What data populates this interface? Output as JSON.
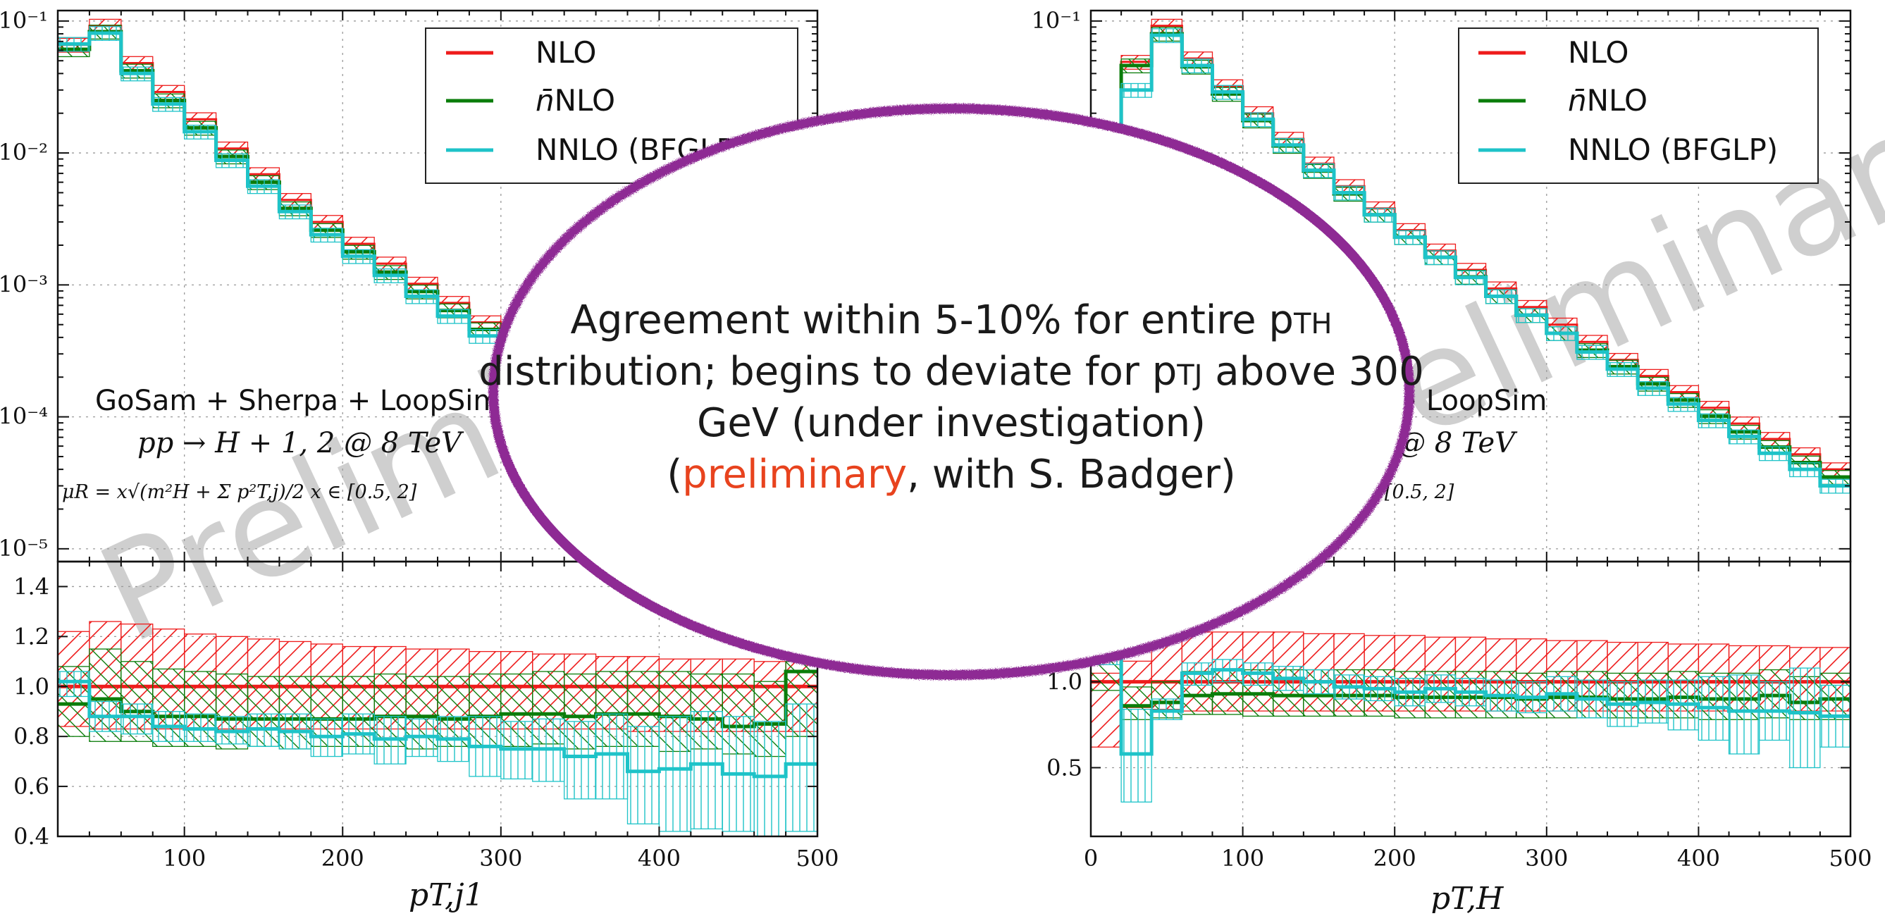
{
  "colors": {
    "nlo": "#ee1c1c",
    "nnlo_bar": "#0a7d0a",
    "nnlo_bfglp": "#1ec3c8",
    "callout_border": "#8e2a94",
    "highlight": "#e8431e",
    "watermark": "#c8c8c8"
  },
  "legend": {
    "nlo": "NLO",
    "nbar_symbol": "n̄",
    "nbar_suffix": "NLO",
    "nnlo": "NNLO (BFGLP)"
  },
  "watermark": "Preliminary",
  "callout": {
    "line1_a": "Agreement within 5-10% for entire p",
    "line1_sub": "TH",
    "line2_a": "distribution; begins to deviate for p",
    "line2_sub": "TJ",
    "line2_b": " above 300",
    "line3": "GeV (under investigation)",
    "line4_a": "(",
    "line4_highlight": "preliminary",
    "line4_b": ", with S. Badger)"
  },
  "left": {
    "info_line1": "GoSam + Sherpa + LoopSim",
    "info_line2": "pp → H + 1, 2 @ 8 TeV",
    "info_line3": "μR = x√(m²H + Σ p²T,j)/2   x ∈ [0.5, 2]",
    "xlabel": "pT,j1"
  },
  "right": {
    "info_line1": "GoSam + Sherpa + LoopSim",
    "info_line2": "pp → H + 1, 2 @ 8 TeV",
    "info_line3": "μR = x√(m²H + Σ p²T,j)/2   x ∈ [0.5, 2]",
    "xlabel": "pT,H"
  },
  "chart_data": [
    {
      "type": "histogram",
      "panel": "left-main",
      "yscale": "log",
      "ylim": [
        8e-06,
        0.12
      ],
      "xlim": [
        20,
        500
      ],
      "ytick_labels": [
        "10⁻¹",
        "10⁻²",
        "10⁻³",
        "10⁻⁴",
        "10⁻⁵"
      ],
      "bin_edges": [
        20,
        40,
        60,
        80,
        100,
        120,
        140,
        160,
        180,
        200,
        220,
        240,
        260,
        280,
        300,
        320,
        340,
        360,
        380,
        400,
        420,
        440,
        460,
        480,
        500
      ],
      "series": [
        {
          "name": "NLO",
          "values": [
            0.066,
            0.092,
            0.048,
            0.029,
            0.018,
            0.0108,
            0.0069,
            0.0044,
            0.003,
            0.00205,
            0.00145,
            0.00102,
            0.00073,
            0.00052,
            0.00038,
            0.00028,
            0.000205,
            0.000152,
            0.000113,
            8.5e-05,
            6.4e-05,
            4.8e-05,
            3.6e-05,
            2.7e-05
          ]
        },
        {
          "name": "n̄NLO",
          "values": [
            0.061,
            0.083,
            0.042,
            0.025,
            0.0155,
            0.0094,
            0.006,
            0.0038,
            0.0026,
            0.00178,
            0.00125,
            0.00089,
            0.00064,
            0.00046,
            0.00033,
            0.000245,
            0.00018,
            0.000132,
            9.8e-05,
            7.4e-05,
            5.6e-05,
            4.2e-05,
            3.1e-05,
            3.5e-05
          ]
        },
        {
          "name": "NNLO (BFGLP)",
          "values": [
            0.067,
            0.081,
            0.04,
            0.0235,
            0.0145,
            0.0088,
            0.0056,
            0.0036,
            0.0024,
            0.00165,
            0.00118,
            0.00082,
            0.00058,
            0.00041,
            0.0003,
            0.00021,
            0.000155,
            0.000112,
            8e-05,
            5.8e-05,
            4.3e-05,
            3.3e-05,
            2.4e-05,
            1.9e-05
          ]
        }
      ]
    },
    {
      "type": "histogram",
      "panel": "left-ratio",
      "ylim": [
        0.4,
        1.5
      ],
      "xlim": [
        20,
        500
      ],
      "xticks": [
        100,
        200,
        300,
        400,
        500
      ],
      "yticks": [
        0.4,
        0.6,
        0.8,
        1.0,
        1.2,
        1.4
      ],
      "bin_edges": [
        20,
        40,
        60,
        80,
        100,
        120,
        140,
        160,
        180,
        200,
        220,
        240,
        260,
        280,
        300,
        320,
        340,
        360,
        380,
        400,
        420,
        440,
        460,
        480,
        500
      ],
      "series": [
        {
          "name": "NLO",
          "values": [
            1.0,
            1.0,
            1.0,
            1.0,
            1.0,
            1.0,
            1.0,
            1.0,
            1.0,
            1.0,
            1.0,
            1.0,
            1.0,
            1.0,
            1.0,
            1.0,
            1.0,
            1.0,
            1.0,
            1.0,
            1.0,
            1.0,
            1.0,
            1.0
          ],
          "band_lo": [
            0.84,
            0.83,
            0.83,
            0.83,
            0.83,
            0.83,
            0.83,
            0.83,
            0.83,
            0.83,
            0.83,
            0.83,
            0.83,
            0.83,
            0.83,
            0.83,
            0.83,
            0.83,
            0.82,
            0.82,
            0.82,
            0.82,
            0.82,
            0.82
          ],
          "band_hi": [
            1.22,
            1.26,
            1.25,
            1.23,
            1.21,
            1.2,
            1.19,
            1.18,
            1.17,
            1.16,
            1.16,
            1.15,
            1.15,
            1.14,
            1.14,
            1.13,
            1.13,
            1.12,
            1.12,
            1.11,
            1.11,
            1.11,
            1.1,
            1.1
          ]
        },
        {
          "name": "n̄NLO",
          "values": [
            0.93,
            0.95,
            0.9,
            0.88,
            0.88,
            0.87,
            0.87,
            0.87,
            0.87,
            0.87,
            0.88,
            0.88,
            0.87,
            0.88,
            0.89,
            0.89,
            0.88,
            0.89,
            0.89,
            0.88,
            0.87,
            0.84,
            0.85,
            1.06
          ],
          "band_lo": [
            0.8,
            0.78,
            0.78,
            0.76,
            0.76,
            0.75,
            0.76,
            0.75,
            0.76,
            0.76,
            0.76,
            0.75,
            0.76,
            0.76,
            0.76,
            0.77,
            0.75,
            0.76,
            0.76,
            0.74,
            0.75,
            0.73,
            0.72,
            0.8
          ],
          "band_hi": [
            1.08,
            1.15,
            1.1,
            1.07,
            1.06,
            1.05,
            1.04,
            1.04,
            1.04,
            1.04,
            1.05,
            1.04,
            1.04,
            1.05,
            1.05,
            1.06,
            1.05,
            1.06,
            1.06,
            1.06,
            1.05,
            1.05,
            1.02,
            1.1
          ]
        },
        {
          "name": "NNLO (BFGLP)",
          "values": [
            1.02,
            0.88,
            0.88,
            0.84,
            0.83,
            0.82,
            0.83,
            0.82,
            0.8,
            0.81,
            0.79,
            0.8,
            0.79,
            0.76,
            0.75,
            0.75,
            0.72,
            0.73,
            0.66,
            0.67,
            0.69,
            0.65,
            0.64,
            0.69
          ],
          "band_lo": [
            0.96,
            0.82,
            0.81,
            0.78,
            0.78,
            0.77,
            0.76,
            0.75,
            0.72,
            0.73,
            0.69,
            0.72,
            0.7,
            0.64,
            0.63,
            0.62,
            0.55,
            0.55,
            0.45,
            0.42,
            0.43,
            0.42,
            0.4,
            0.42
          ],
          "band_hi": [
            1.06,
            0.94,
            0.93,
            0.9,
            0.89,
            0.88,
            0.89,
            0.89,
            0.87,
            0.89,
            0.88,
            0.87,
            0.88,
            0.88,
            0.86,
            0.87,
            0.86,
            0.89,
            0.84,
            0.88,
            0.9,
            0.88,
            0.86,
            0.93
          ]
        }
      ]
    },
    {
      "type": "histogram",
      "panel": "right-main",
      "yscale": "log",
      "ylim": [
        8e-06,
        0.12
      ],
      "xlim": [
        0,
        500
      ],
      "ytick_labels": [
        "10⁻¹"
      ],
      "bin_edges": [
        0,
        20,
        40,
        60,
        80,
        100,
        120,
        140,
        160,
        180,
        200,
        220,
        240,
        260,
        280,
        300,
        320,
        340,
        360,
        380,
        400,
        420,
        440,
        460,
        480,
        500
      ],
      "series": [
        {
          "name": "NLO",
          "values": [
            1e-05,
            0.049,
            0.092,
            0.052,
            0.032,
            0.02,
            0.0128,
            0.0083,
            0.0056,
            0.0038,
            0.0026,
            0.00182,
            0.0013,
            0.00094,
            0.00068,
            0.0005,
            0.00037,
            0.00027,
            0.000204,
            0.000154,
            0.000117,
            8.9e-05,
            6.8e-05,
            5.2e-05,
            4e-05
          ]
        },
        {
          "name": "n̄NLO",
          "values": [
            1e-05,
            0.046,
            0.08,
            0.045,
            0.028,
            0.0176,
            0.0113,
            0.0073,
            0.0049,
            0.0034,
            0.0023,
            0.00162,
            0.00115,
            0.00082,
            0.00059,
            0.00043,
            0.00032,
            0.00024,
            0.000178,
            0.000134,
            0.000101,
            7.7e-05,
            5.9e-05,
            4.5e-05,
            3.5e-05
          ]
        },
        {
          "name": "NNLO (BFGLP)",
          "values": [
            1e-05,
            0.03,
            0.078,
            0.046,
            0.029,
            0.018,
            0.0115,
            0.0074,
            0.005,
            0.0034,
            0.0023,
            0.00162,
            0.00114,
            0.00082,
            0.00059,
            0.00043,
            0.00031,
            0.00023,
            0.000165,
            0.000125,
            9.4e-05,
            7.1e-05,
            5.3e-05,
            4e-05,
            3e-05
          ]
        }
      ]
    },
    {
      "type": "histogram",
      "panel": "right-ratio",
      "ylim": [
        0.1,
        1.7
      ],
      "xlim": [
        0,
        500
      ],
      "xticks": [
        0,
        100,
        200,
        300,
        400,
        500
      ],
      "yticks": [
        0.5,
        1.0
      ],
      "bin_edges": [
        0,
        20,
        40,
        60,
        80,
        100,
        120,
        140,
        160,
        180,
        200,
        220,
        240,
        260,
        280,
        300,
        320,
        340,
        360,
        380,
        400,
        420,
        440,
        460,
        480,
        500
      ],
      "series": [
        {
          "name": "NLO",
          "values": [
            1.0,
            1.0,
            1.0,
            1.0,
            1.0,
            1.0,
            1.0,
            1.0,
            1.0,
            1.0,
            1.0,
            1.0,
            1.0,
            1.0,
            1.0,
            1.0,
            1.0,
            1.0,
            1.0,
            1.0,
            1.0,
            1.0,
            1.0,
            1.0,
            1.0
          ],
          "band_lo": [
            0.62,
            0.85,
            0.84,
            0.83,
            0.83,
            0.83,
            0.83,
            0.83,
            0.83,
            0.83,
            0.83,
            0.83,
            0.83,
            0.83,
            0.83,
            0.83,
            0.83,
            0.83,
            0.83,
            0.83,
            0.83,
            0.83,
            0.83,
            0.83,
            0.83
          ],
          "band_hi": [
            1.05,
            1.12,
            1.27,
            1.29,
            1.29,
            1.29,
            1.29,
            1.28,
            1.28,
            1.27,
            1.27,
            1.26,
            1.26,
            1.25,
            1.25,
            1.24,
            1.24,
            1.23,
            1.23,
            1.22,
            1.22,
            1.21,
            1.21,
            1.2,
            1.2
          ]
        },
        {
          "name": "n̄NLO",
          "values": [
            1.17,
            0.86,
            0.88,
            0.92,
            0.93,
            0.93,
            0.92,
            0.92,
            0.92,
            0.92,
            0.91,
            0.91,
            0.91,
            0.91,
            0.9,
            0.91,
            0.91,
            0.9,
            0.9,
            0.91,
            0.9,
            0.9,
            0.92,
            0.88,
            0.9
          ],
          "band_lo": [
            0.95,
            0.78,
            0.79,
            0.81,
            0.81,
            0.8,
            0.8,
            0.8,
            0.8,
            0.8,
            0.79,
            0.79,
            0.79,
            0.79,
            0.79,
            0.79,
            0.79,
            0.79,
            0.79,
            0.79,
            0.78,
            0.78,
            0.79,
            0.78,
            0.78
          ],
          "band_hi": [
            1.25,
            0.97,
            1.0,
            1.06,
            1.07,
            1.07,
            1.07,
            1.07,
            1.07,
            1.07,
            1.06,
            1.06,
            1.06,
            1.06,
            1.05,
            1.06,
            1.06,
            1.05,
            1.05,
            1.06,
            1.05,
            1.05,
            1.07,
            1.03,
            1.05
          ]
        },
        {
          "name": "NNLO (BFGLP)",
          "values": [
            1.2,
            0.58,
            0.83,
            1.05,
            1.07,
            1.05,
            1.02,
            1.0,
            0.97,
            0.96,
            0.94,
            0.96,
            0.94,
            0.92,
            0.91,
            0.93,
            0.9,
            0.87,
            0.88,
            0.87,
            0.85,
            0.83,
            0.83,
            0.82,
            0.8
          ],
          "band_lo": [
            1.1,
            0.3,
            0.78,
            0.98,
            1.0,
            0.98,
            0.95,
            0.93,
            0.9,
            0.89,
            0.86,
            0.88,
            0.86,
            0.83,
            0.82,
            0.83,
            0.79,
            0.74,
            0.76,
            0.72,
            0.66,
            0.58,
            0.66,
            0.5,
            0.62
          ],
          "band_hi": [
            1.28,
            0.84,
            0.9,
            1.11,
            1.13,
            1.11,
            1.09,
            1.07,
            1.04,
            1.03,
            1.02,
            1.04,
            1.02,
            1.01,
            1.0,
            1.03,
            1.01,
            1.0,
            1.01,
            1.01,
            1.03,
            1.04,
            1.0,
            1.08,
            0.98
          ]
        }
      ]
    }
  ]
}
